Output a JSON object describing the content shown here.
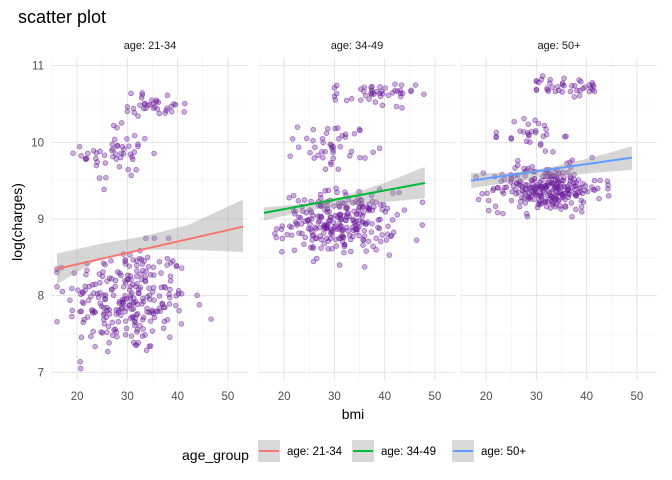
{
  "chart_data": {
    "type": "scatter",
    "title": "scatter plot",
    "xlabel": "bmi",
    "ylabel": "log(charges)",
    "ylim": [
      6.9,
      11.1
    ],
    "yticks": [
      7,
      8,
      9,
      10,
      11
    ],
    "point_color": "#6a1b9a",
    "grid": true,
    "legend": {
      "title": "age_group",
      "position": "bottom",
      "entries": [
        {
          "label": "age: 21-34",
          "color": "#f8766d"
        },
        {
          "label": "age: 34-49",
          "color": "#00ba38"
        },
        {
          "label": "age: 50+",
          "color": "#619cff"
        }
      ]
    },
    "panels": [
      {
        "strip": "age: 21-34",
        "xlim": [
          15,
          54
        ],
        "xticks": [
          20,
          30,
          40,
          50
        ],
        "line_color": "#f8766d",
        "fit": {
          "x": [
            16,
            53
          ],
          "y": [
            8.35,
            8.9
          ]
        },
        "ci": {
          "x": [
            16,
            25,
            33,
            42,
            53
          ],
          "upper": [
            8.55,
            8.68,
            8.77,
            8.92,
            9.25
          ],
          "lower": [
            8.15,
            8.5,
            8.6,
            8.6,
            8.57
          ]
        },
        "clusters": [
          {
            "cx": 30,
            "cy": 7.95,
            "sx": 6,
            "sy": 0.35,
            "n": 260,
            "xmin": 16,
            "xmax": 53,
            "ymin": 7.05,
            "ymax": 8.75
          },
          {
            "cx": 28,
            "cy": 9.85,
            "sx": 3.5,
            "sy": 0.2,
            "n": 50,
            "xmin": 17,
            "xmax": 37,
            "ymin": 9.35,
            "ymax": 10.4
          },
          {
            "cx": 36,
            "cy": 10.5,
            "sx": 3.5,
            "sy": 0.08,
            "n": 35,
            "xmin": 30,
            "xmax": 52,
            "ymin": 10.3,
            "ymax": 10.75
          }
        ]
      },
      {
        "strip": "age: 34-49",
        "xlim": [
          15,
          54
        ],
        "xticks": [
          20,
          30,
          40,
          50
        ],
        "line_color": "#00ba38",
        "fit": {
          "x": [
            16,
            48
          ],
          "y": [
            9.08,
            9.47
          ]
        },
        "ci": {
          "x": [
            16,
            24,
            32,
            40,
            48
          ],
          "upper": [
            9.15,
            9.2,
            9.3,
            9.47,
            9.68
          ],
          "lower": [
            8.98,
            9.1,
            9.17,
            9.22,
            9.27
          ]
        },
        "clusters": [
          {
            "cx": 31,
            "cy": 8.95,
            "sx": 5.5,
            "sy": 0.2,
            "n": 260,
            "xmin": 16,
            "xmax": 50,
            "ymin": 8.3,
            "ymax": 9.4
          },
          {
            "cx": 30,
            "cy": 9.95,
            "sx": 3.5,
            "sy": 0.15,
            "n": 45,
            "xmin": 20,
            "xmax": 39,
            "ymin": 9.65,
            "ymax": 10.35
          },
          {
            "cx": 38,
            "cy": 10.62,
            "sx": 4,
            "sy": 0.08,
            "n": 45,
            "xmin": 30,
            "xmax": 50,
            "ymin": 10.45,
            "ymax": 10.9
          }
        ]
      },
      {
        "strip": "age: 50+",
        "xlim": [
          15,
          54
        ],
        "xticks": [
          20,
          30,
          40,
          50
        ],
        "line_color": "#619cff",
        "fit": {
          "x": [
            17,
            49
          ],
          "y": [
            9.5,
            9.8
          ]
        },
        "ci": {
          "x": [
            17,
            25,
            33,
            41,
            49
          ],
          "upper": [
            9.6,
            9.6,
            9.68,
            9.8,
            9.95
          ],
          "lower": [
            9.4,
            9.48,
            9.55,
            9.6,
            9.64
          ]
        },
        "clusters": [
          {
            "cx": 32,
            "cy": 9.4,
            "sx": 5.5,
            "sy": 0.15,
            "n": 260,
            "xmin": 17,
            "xmax": 49,
            "ymin": 9.03,
            "ymax": 9.8
          },
          {
            "cx": 29,
            "cy": 10.1,
            "sx": 3,
            "sy": 0.12,
            "n": 30,
            "xmin": 22,
            "xmax": 38,
            "ymin": 9.85,
            "ymax": 10.4
          },
          {
            "cx": 36,
            "cy": 10.72,
            "sx": 4,
            "sy": 0.07,
            "n": 40,
            "xmin": 30,
            "xmax": 48,
            "ymin": 10.55,
            "ymax": 11.05
          }
        ]
      }
    ]
  }
}
